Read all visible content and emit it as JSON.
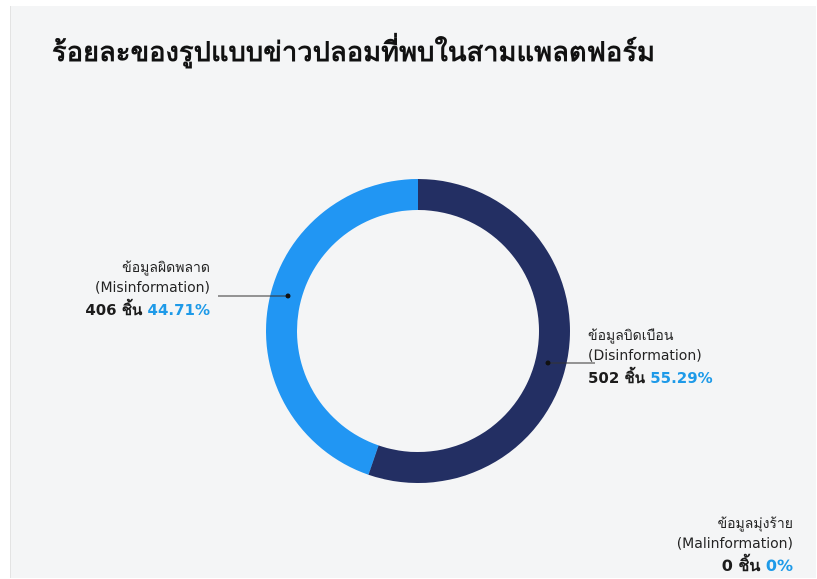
{
  "title": "ร้อยละของรูปแบบข่าวปลอมที่พบในสามแพลตฟอร์ม",
  "colors": {
    "disinformation": "#232f63",
    "misinformation": "#2196f3",
    "percent_text": "#1e9ae8",
    "background": "#f4f5f6"
  },
  "chart_data": {
    "type": "pie",
    "title": "ร้อยละของรูปแบบข่าวปลอมที่พบในสามแพลตฟอร์ม",
    "donut": true,
    "unit": "ชิ้น",
    "series": [
      {
        "name_th": "ข้อมูลบิดเบือน",
        "name_en": "(Disinformation)",
        "count": 502,
        "percent": 55.29,
        "count_label": "502 ชิ้น",
        "percent_label": "55.29%",
        "color": "#232f63"
      },
      {
        "name_th": "ข้อมูลผิดพลาด",
        "name_en": "(Misinformation)",
        "count": 406,
        "percent": 44.71,
        "count_label": "406 ชิ้น",
        "percent_label": "44.71%",
        "color": "#2196f3"
      },
      {
        "name_th": "ข้อมูลมุ่งร้าย",
        "name_en": "(Malinformation)",
        "count": 0,
        "percent": 0,
        "count_label": "0 ชิ้น",
        "percent_label": "0%",
        "color": "#1e9ae8"
      }
    ]
  }
}
